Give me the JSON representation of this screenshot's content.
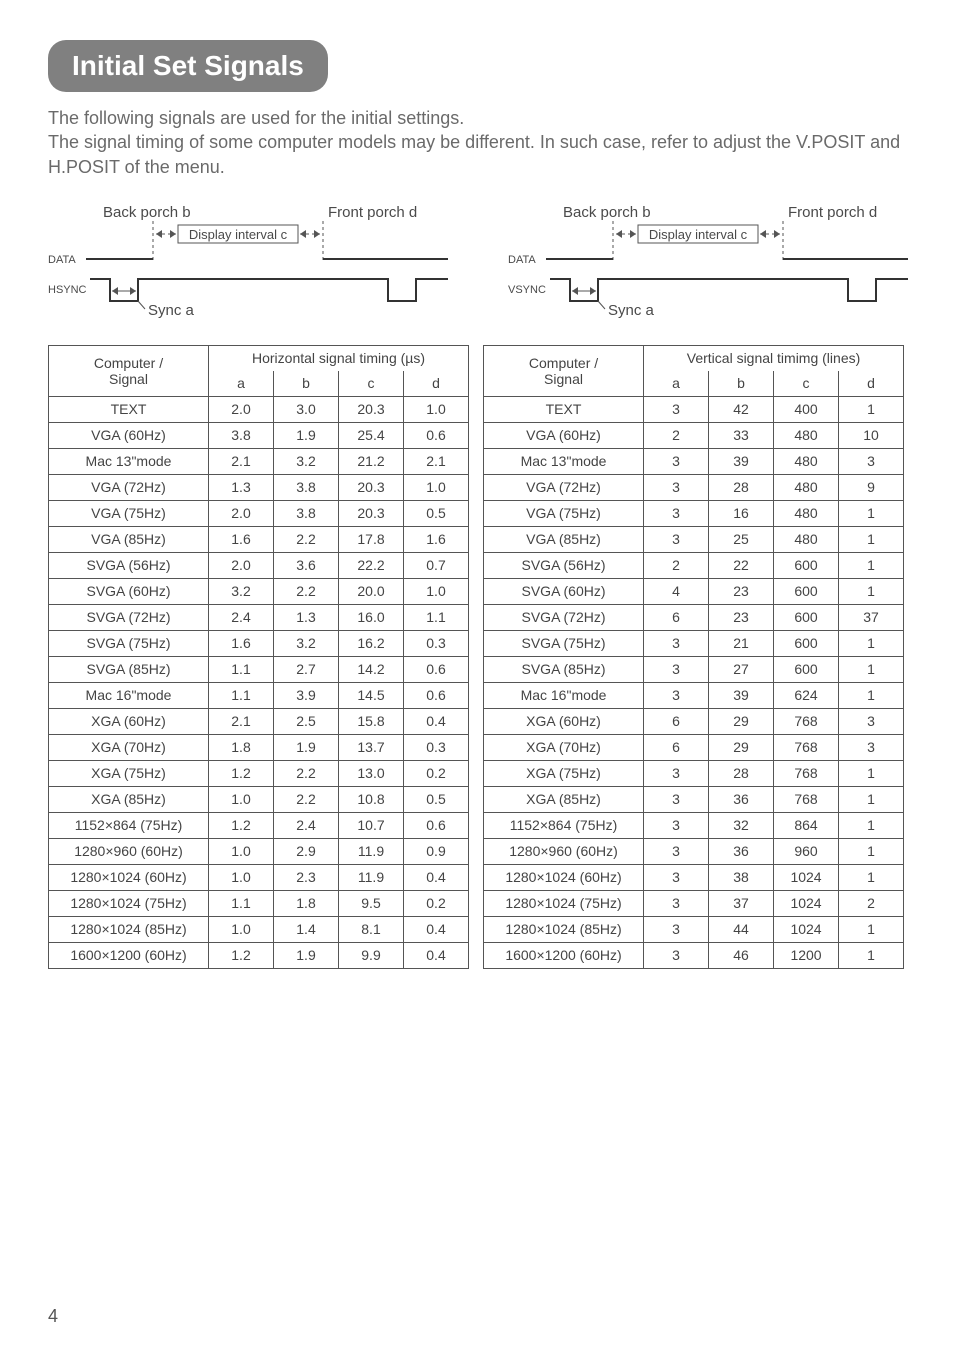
{
  "page_number": "4",
  "title": "Initial Set Signals",
  "intro_line1": "The following signals are used for the initial settings.",
  "intro_line2": "The signal timing of some computer models may be different. In such case, refer to adjust the V.POSIT and H.POSIT of the menu.",
  "diagram_labels": {
    "back_porch": "Back porch b",
    "front_porch": "Front porch d",
    "display_interval": "Display interval c",
    "sync_a": "Sync a",
    "data": "DATA",
    "hsync": "HSYNC",
    "vsync": "VSYNC"
  },
  "horiz_header_main": "Computer / Signal",
  "horiz_header_cols": "Horizontal signal timing (µs)",
  "vert_header_main": "Computer / Signal",
  "vert_header_cols": "Vertical signal timimg (lines)",
  "col_labels": {
    "a": "a",
    "b": "b",
    "c": "c",
    "d": "d"
  },
  "horiz_rows": [
    {
      "name": "TEXT",
      "a": "2.0",
      "b": "3.0",
      "c": "20.3",
      "d": "1.0"
    },
    {
      "name": "VGA (60Hz)",
      "a": "3.8",
      "b": "1.9",
      "c": "25.4",
      "d": "0.6"
    },
    {
      "name": "Mac 13\"mode",
      "a": "2.1",
      "b": "3.2",
      "c": "21.2",
      "d": "2.1"
    },
    {
      "name": "VGA (72Hz)",
      "a": "1.3",
      "b": "3.8",
      "c": "20.3",
      "d": "1.0"
    },
    {
      "name": "VGA (75Hz)",
      "a": "2.0",
      "b": "3.8",
      "c": "20.3",
      "d": "0.5"
    },
    {
      "name": "VGA (85Hz)",
      "a": "1.6",
      "b": "2.2",
      "c": "17.8",
      "d": "1.6"
    },
    {
      "name": "SVGA (56Hz)",
      "a": "2.0",
      "b": "3.6",
      "c": "22.2",
      "d": "0.7"
    },
    {
      "name": "SVGA (60Hz)",
      "a": "3.2",
      "b": "2.2",
      "c": "20.0",
      "d": "1.0"
    },
    {
      "name": "SVGA (72Hz)",
      "a": "2.4",
      "b": "1.3",
      "c": "16.0",
      "d": "1.1"
    },
    {
      "name": "SVGA (75Hz)",
      "a": "1.6",
      "b": "3.2",
      "c": "16.2",
      "d": "0.3"
    },
    {
      "name": "SVGA (85Hz)",
      "a": "1.1",
      "b": "2.7",
      "c": "14.2",
      "d": "0.6"
    },
    {
      "name": "Mac 16\"mode",
      "a": "1.1",
      "b": "3.9",
      "c": "14.5",
      "d": "0.6"
    },
    {
      "name": "XGA (60Hz)",
      "a": "2.1",
      "b": "2.5",
      "c": "15.8",
      "d": "0.4"
    },
    {
      "name": "XGA (70Hz)",
      "a": "1.8",
      "b": "1.9",
      "c": "13.7",
      "d": "0.3"
    },
    {
      "name": "XGA (75Hz)",
      "a": "1.2",
      "b": "2.2",
      "c": "13.0",
      "d": "0.2"
    },
    {
      "name": "XGA (85Hz)",
      "a": "1.0",
      "b": "2.2",
      "c": "10.8",
      "d": "0.5"
    },
    {
      "name": "1152×864 (75Hz)",
      "a": "1.2",
      "b": "2.4",
      "c": "10.7",
      "d": "0.6"
    },
    {
      "name": "1280×960 (60Hz)",
      "a": "1.0",
      "b": "2.9",
      "c": "11.9",
      "d": "0.9"
    },
    {
      "name": "1280×1024 (60Hz)",
      "a": "1.0",
      "b": "2.3",
      "c": "11.9",
      "d": "0.4"
    },
    {
      "name": "1280×1024 (75Hz)",
      "a": "1.1",
      "b": "1.8",
      "c": "9.5",
      "d": "0.2"
    },
    {
      "name": "1280×1024 (85Hz)",
      "a": "1.0",
      "b": "1.4",
      "c": "8.1",
      "d": "0.4"
    },
    {
      "name": "1600×1200 (60Hz)",
      "a": "1.2",
      "b": "1.9",
      "c": "9.9",
      "d": "0.4"
    }
  ],
  "vert_rows": [
    {
      "name": "TEXT",
      "a": "3",
      "b": "42",
      "c": "400",
      "d": "1"
    },
    {
      "name": "VGA (60Hz)",
      "a": "2",
      "b": "33",
      "c": "480",
      "d": "10"
    },
    {
      "name": "Mac 13\"mode",
      "a": "3",
      "b": "39",
      "c": "480",
      "d": "3"
    },
    {
      "name": "VGA (72Hz)",
      "a": "3",
      "b": "28",
      "c": "480",
      "d": "9"
    },
    {
      "name": "VGA (75Hz)",
      "a": "3",
      "b": "16",
      "c": "480",
      "d": "1"
    },
    {
      "name": "VGA (85Hz)",
      "a": "3",
      "b": "25",
      "c": "480",
      "d": "1"
    },
    {
      "name": "SVGA (56Hz)",
      "a": "2",
      "b": "22",
      "c": "600",
      "d": "1"
    },
    {
      "name": "SVGA (60Hz)",
      "a": "4",
      "b": "23",
      "c": "600",
      "d": "1"
    },
    {
      "name": "SVGA (72Hz)",
      "a": "6",
      "b": "23",
      "c": "600",
      "d": "37"
    },
    {
      "name": "SVGA (75Hz)",
      "a": "3",
      "b": "21",
      "c": "600",
      "d": "1"
    },
    {
      "name": "SVGA (85Hz)",
      "a": "3",
      "b": "27",
      "c": "600",
      "d": "1"
    },
    {
      "name": "Mac 16\"mode",
      "a": "3",
      "b": "39",
      "c": "624",
      "d": "1"
    },
    {
      "name": "XGA (60Hz)",
      "a": "6",
      "b": "29",
      "c": "768",
      "d": "3"
    },
    {
      "name": "XGA (70Hz)",
      "a": "6",
      "b": "29",
      "c": "768",
      "d": "3"
    },
    {
      "name": "XGA (75Hz)",
      "a": "3",
      "b": "28",
      "c": "768",
      "d": "1"
    },
    {
      "name": "XGA (85Hz)",
      "a": "3",
      "b": "36",
      "c": "768",
      "d": "1"
    },
    {
      "name": "1152×864 (75Hz)",
      "a": "3",
      "b": "32",
      "c": "864",
      "d": "1"
    },
    {
      "name": "1280×960 (60Hz)",
      "a": "3",
      "b": "36",
      "c": "960",
      "d": "1"
    },
    {
      "name": "1280×1024 (60Hz)",
      "a": "3",
      "b": "38",
      "c": "1024",
      "d": "1"
    },
    {
      "name": "1280×1024 (75Hz)",
      "a": "3",
      "b": "37",
      "c": "1024",
      "d": "2"
    },
    {
      "name": "1280×1024 (85Hz)",
      "a": "3",
      "b": "44",
      "c": "1024",
      "d": "1"
    },
    {
      "name": "1600×1200 (60Hz)",
      "a": "3",
      "b": "46",
      "c": "1200",
      "d": "1"
    }
  ]
}
